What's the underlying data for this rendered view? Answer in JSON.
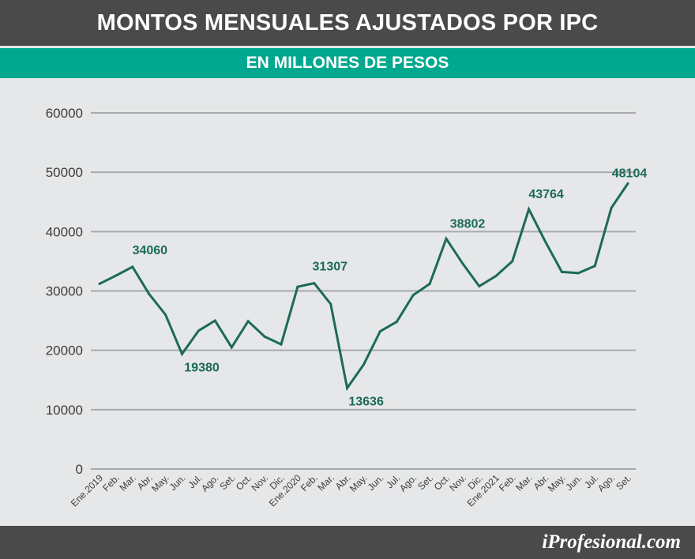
{
  "header": {
    "title": "MONTOS MENSUALES AJUSTADOS POR IPC",
    "subtitle": "EN MILLONES DE PESOS"
  },
  "footer": {
    "brand": "iProfesional.com"
  },
  "colors": {
    "header_bg": "#4a4a4a",
    "subtitle_bg": "#00a88f",
    "plot_bg": "#e6e7e8",
    "line": "#1b6b57",
    "grid": "#a7a9ac",
    "text": "#3c3c3c"
  },
  "chart_data": {
    "type": "line",
    "title": "MONTOS MENSUALES AJUSTADOS POR IPC",
    "subtitle": "EN MILLONES DE PESOS",
    "xlabel": "",
    "ylabel": "",
    "ylim": [
      0,
      60000
    ],
    "yticks": [
      0,
      10000,
      20000,
      30000,
      40000,
      50000,
      60000
    ],
    "grid": true,
    "legend": "none",
    "categories": [
      "Ene.2019",
      "Feb.",
      "Mar.",
      "Abr.",
      "May.",
      "Jun.",
      "Jul.",
      "Ago.",
      "Set.",
      "Oct.",
      "Nov.",
      "Dic.",
      "Ene.2020",
      "Feb.",
      "Mar.",
      "Abr.",
      "May.",
      "Jun.",
      "Jul.",
      "Ago.",
      "Set.",
      "Oct.",
      "Nov.",
      "Dic.",
      "Ene.2021",
      "Feb.",
      "Mar.",
      "Abr.",
      "May.",
      "Jun.",
      "Jul.",
      "Ago.",
      "Set."
    ],
    "values": [
      31200,
      32600,
      34060,
      29500,
      26000,
      19380,
      23300,
      25000,
      20500,
      24900,
      22300,
      21000,
      30700,
      31307,
      27800,
      13636,
      17600,
      23200,
      24800,
      29300,
      31200,
      38802,
      34600,
      30800,
      32500,
      35000,
      43764,
      38300,
      33200,
      33000,
      34200,
      44000,
      48104
    ],
    "annotations": [
      {
        "index": 2,
        "text": "34060"
      },
      {
        "index": 5,
        "text": "19380"
      },
      {
        "index": 13,
        "text": "31307"
      },
      {
        "index": 15,
        "text": "13636"
      },
      {
        "index": 21,
        "text": "38802"
      },
      {
        "index": 26,
        "text": "43764"
      },
      {
        "index": 32,
        "text": "48104"
      }
    ]
  }
}
